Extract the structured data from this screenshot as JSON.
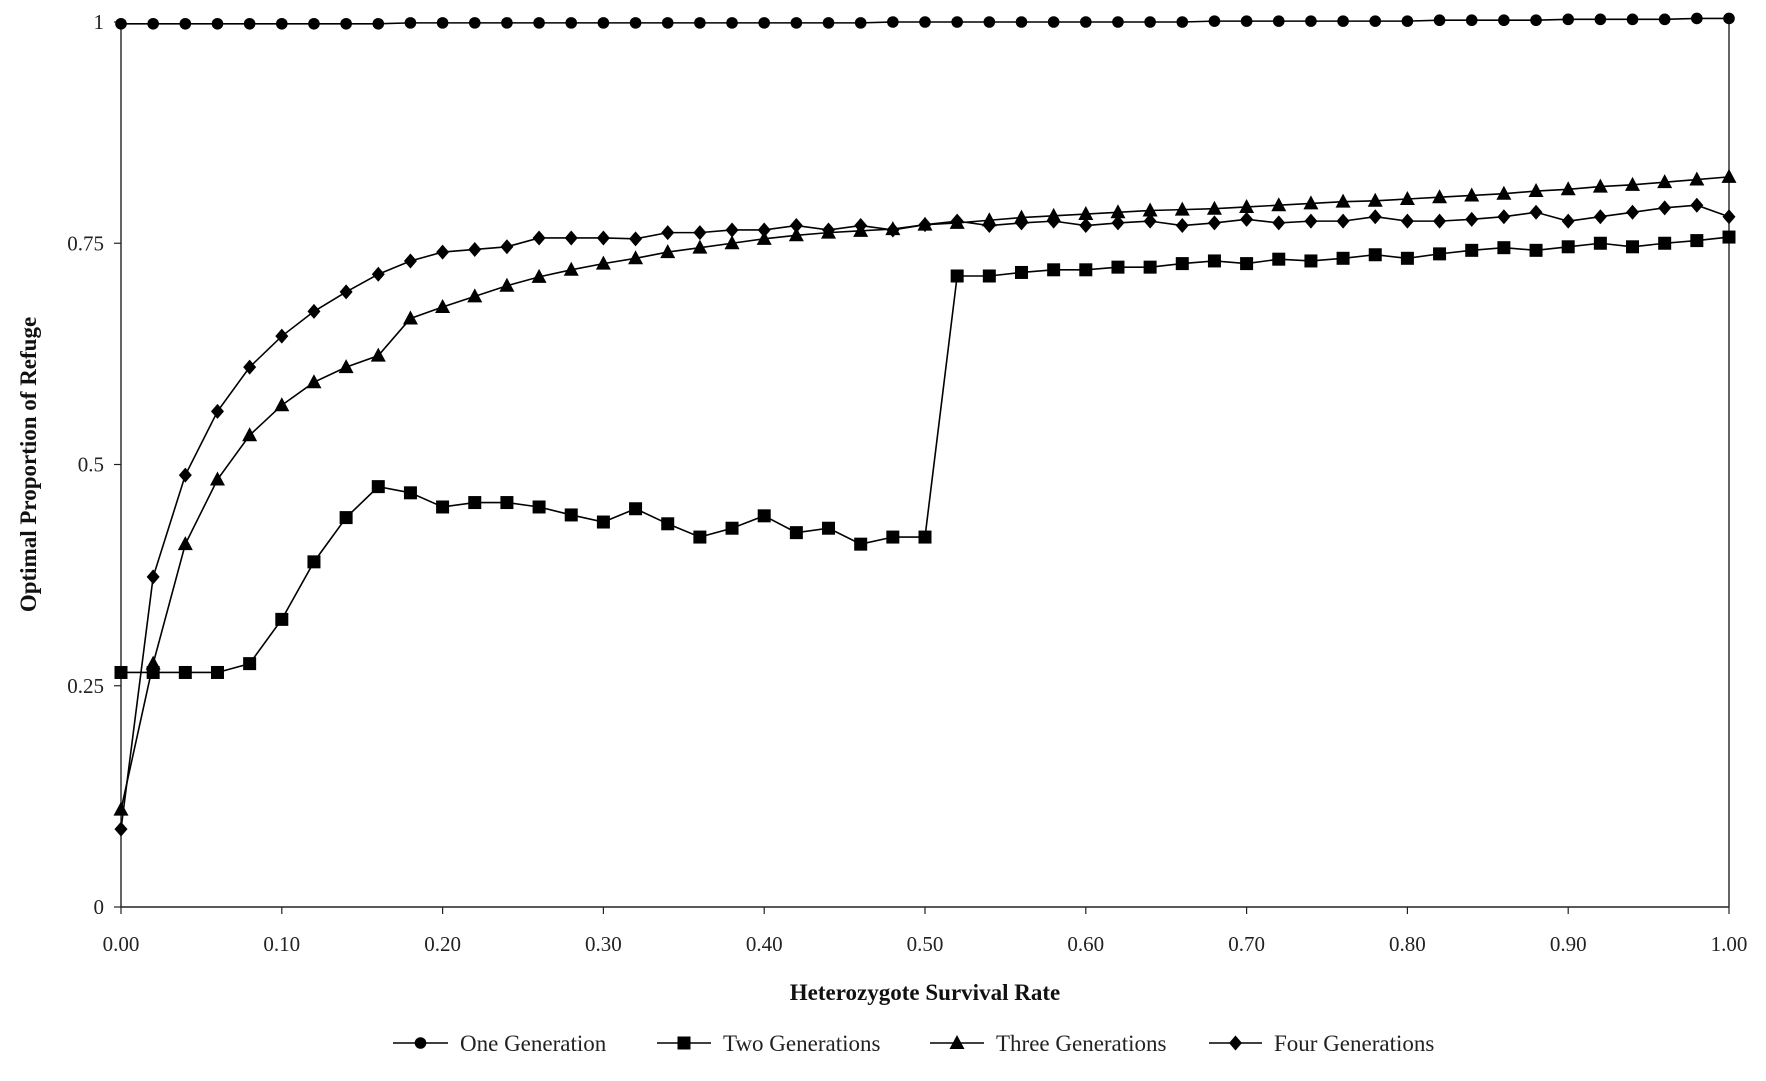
{
  "chart_data": {
    "type": "line",
    "title": "",
    "xlabel": "Heterozygote Survival Rate",
    "ylabel": "Optimal Proportion of Refuge",
    "xlim": [
      0,
      1
    ],
    "ylim": [
      0,
      1
    ],
    "x_ticks": [
      "0.00",
      "0.10",
      "0.20",
      "0.30",
      "0.40",
      "0.50",
      "0.60",
      "0.70",
      "0.80",
      "0.90",
      "1.00"
    ],
    "y_ticks": [
      "0",
      "0.25",
      "0.5",
      "0.75",
      "1"
    ],
    "grid": false,
    "legend_position": "bottom",
    "x": [
      0.0,
      0.02,
      0.04,
      0.06,
      0.08,
      0.1,
      0.12,
      0.14,
      0.16,
      0.18,
      0.2,
      0.22,
      0.24,
      0.26,
      0.28,
      0.3,
      0.32,
      0.34,
      0.36,
      0.38,
      0.4,
      0.42,
      0.44,
      0.46,
      0.48,
      0.5,
      0.52,
      0.54,
      0.56,
      0.58,
      0.6,
      0.62,
      0.64,
      0.66,
      0.68,
      0.7,
      0.72,
      0.74,
      0.76,
      0.78,
      0.8,
      0.82,
      0.84,
      0.86,
      0.88,
      0.9,
      0.92,
      0.94,
      0.96,
      0.98,
      1.0
    ],
    "series": [
      {
        "name": "One Generation",
        "marker": "circle",
        "values": [
          0.998,
          0.998,
          0.998,
          0.998,
          0.998,
          0.998,
          0.998,
          0.998,
          0.998,
          0.999,
          0.999,
          0.999,
          0.999,
          0.999,
          0.999,
          0.999,
          0.999,
          0.999,
          0.999,
          0.999,
          0.999,
          0.999,
          0.999,
          0.999,
          1.0,
          1.0,
          1.0,
          1.0,
          1.0,
          1.0,
          1.0,
          1.0,
          1.0,
          1.0,
          1.001,
          1.001,
          1.001,
          1.001,
          1.001,
          1.001,
          1.001,
          1.002,
          1.002,
          1.002,
          1.002,
          1.003,
          1.003,
          1.003,
          1.003,
          1.004,
          1.004
        ]
      },
      {
        "name": "Two Generations",
        "marker": "square",
        "values": [
          0.265,
          0.265,
          0.265,
          0.265,
          0.275,
          0.325,
          0.39,
          0.44,
          0.475,
          0.468,
          0.452,
          0.457,
          0.457,
          0.452,
          0.443,
          0.435,
          0.45,
          0.433,
          0.418,
          0.428,
          0.442,
          0.423,
          0.428,
          0.41,
          0.418,
          0.418,
          0.713,
          0.713,
          0.717,
          0.72,
          0.72,
          0.723,
          0.723,
          0.727,
          0.73,
          0.727,
          0.732,
          0.73,
          0.733,
          0.737,
          0.733,
          0.738,
          0.742,
          0.745,
          0.742,
          0.746,
          0.75,
          0.746,
          0.75,
          0.753,
          0.757
        ]
      },
      {
        "name": "Three Generations",
        "marker": "triangle",
        "values": [
          0.11,
          0.275,
          0.41,
          0.483,
          0.533,
          0.567,
          0.593,
          0.61,
          0.623,
          0.665,
          0.678,
          0.69,
          0.702,
          0.712,
          0.72,
          0.727,
          0.733,
          0.74,
          0.745,
          0.75,
          0.755,
          0.759,
          0.762,
          0.764,
          0.766,
          0.771,
          0.773,
          0.776,
          0.779,
          0.781,
          0.783,
          0.785,
          0.787,
          0.788,
          0.789,
          0.791,
          0.793,
          0.795,
          0.797,
          0.798,
          0.8,
          0.802,
          0.804,
          0.806,
          0.809,
          0.811,
          0.814,
          0.816,
          0.819,
          0.822,
          0.825
        ]
      },
      {
        "name": "Four Generations",
        "marker": "diamond",
        "values": [
          0.088,
          0.373,
          0.488,
          0.56,
          0.61,
          0.645,
          0.673,
          0.695,
          0.715,
          0.73,
          0.74,
          0.743,
          0.746,
          0.756,
          0.756,
          0.756,
          0.755,
          0.762,
          0.762,
          0.765,
          0.765,
          0.77,
          0.765,
          0.77,
          0.765,
          0.771,
          0.775,
          0.77,
          0.773,
          0.775,
          0.77,
          0.773,
          0.775,
          0.77,
          0.773,
          0.777,
          0.773,
          0.775,
          0.775,
          0.78,
          0.775,
          0.775,
          0.777,
          0.78,
          0.785,
          0.775,
          0.78,
          0.785,
          0.79,
          0.793,
          0.78
        ]
      }
    ]
  }
}
